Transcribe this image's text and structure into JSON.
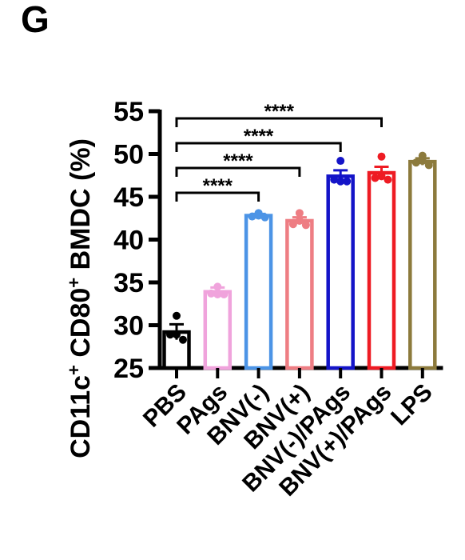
{
  "panel_label": "G",
  "chart_data": {
    "type": "bar",
    "title": "",
    "ylabel_parts": [
      {
        "text": "CD11c",
        "sup": false
      },
      {
        "text": "+",
        "sup": true
      },
      {
        "text": " CD80",
        "sup": false
      },
      {
        "text": "+",
        "sup": true
      },
      {
        "text": " BMDC (%)",
        "sup": false
      }
    ],
    "ylabel": "CD11c+ CD80+ BMDC (%)",
    "xlabel": "",
    "ylim": [
      25,
      55
    ],
    "yticks": [
      25,
      30,
      35,
      40,
      45,
      50,
      55
    ],
    "categories": [
      "PBS",
      "PAgs",
      "BNV(-)",
      "BNV(+)",
      "BNV(-)/PAgs",
      "BNV(+)/PAgs",
      "LPS"
    ],
    "values": [
      29.2,
      33.9,
      42.8,
      42.2,
      47.4,
      47.8,
      49.1
    ],
    "errors": [
      0.9,
      0.5,
      0.2,
      0.4,
      0.7,
      0.7,
      0.4
    ],
    "points": [
      [
        31.1,
        28.9,
        28.3,
        28.9
      ],
      [
        34.5,
        33.7,
        33.6,
        33.6
      ],
      [
        43.1,
        42.7,
        42.6,
        42.8
      ],
      [
        43.1,
        41.8,
        41.7,
        42.2
      ],
      [
        49.2,
        47.0,
        46.8,
        46.8
      ],
      [
        49.7,
        47.2,
        47.0,
        47.4
      ],
      [
        49.8,
        49.0,
        48.7,
        49.2
      ]
    ],
    "colors": [
      "#000000",
      "#f0a3dc",
      "#4c94e6",
      "#ee7d83",
      "#1414c8",
      "#ee1b23",
      "#8c7a3c"
    ],
    "comparisons": [
      {
        "from": 0,
        "to": 2,
        "label": "****"
      },
      {
        "from": 0,
        "to": 3,
        "label": "****"
      },
      {
        "from": 0,
        "to": 4,
        "label": "****"
      },
      {
        "from": 0,
        "to": 5,
        "label": "****"
      }
    ],
    "grid": false,
    "legend": "none"
  }
}
